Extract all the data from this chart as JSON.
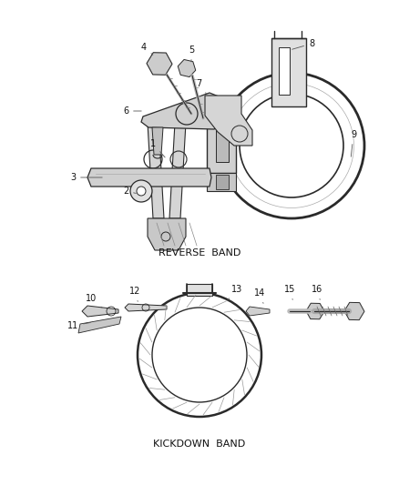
{
  "bg_color": "#ffffff",
  "line_color": "#2a2a2a",
  "text_color": "#111111",
  "reverse_band_label": "REVERSE  BAND",
  "kickdown_band_label": "KICKDOWN  BAND",
  "font_size_label": 7.0,
  "font_size_section": 8.0
}
